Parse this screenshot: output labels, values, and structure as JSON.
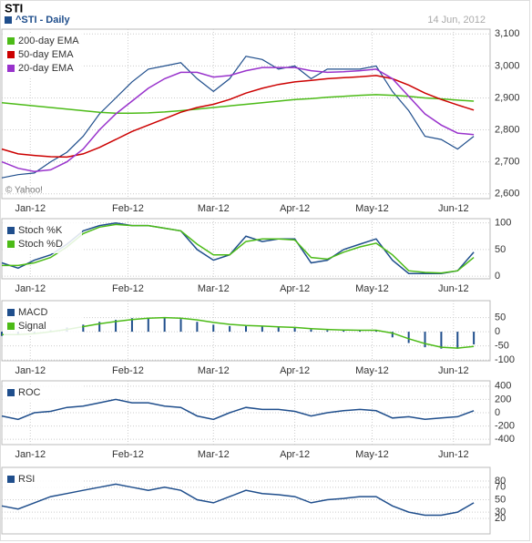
{
  "chart_data": [
    {
      "type": "line",
      "title": "STI",
      "subtitle": "^STI - Daily",
      "date": "14 Jun, 2012",
      "annotation": "© Yahoo!",
      "x": [
        0,
        4,
        8,
        12,
        16,
        20,
        24,
        28,
        32,
        36,
        40,
        44,
        48,
        52,
        56,
        60,
        64,
        68,
        72,
        76,
        80,
        84,
        88,
        92,
        96,
        100,
        104,
        108,
        112,
        116
      ],
      "xlim": [
        0,
        120
      ],
      "xticks": [
        {
          "value": 7,
          "label": "Jan-12"
        },
        {
          "value": 31,
          "label": "Feb-12"
        },
        {
          "value": 52,
          "label": "Mar-12"
        },
        {
          "value": 72,
          "label": "Apr-12"
        },
        {
          "value": 91,
          "label": "May-12"
        },
        {
          "value": 111,
          "label": "Jun-12"
        }
      ],
      "ylim": [
        2585,
        3115
      ],
      "yticks": [
        {
          "value": 2600,
          "label": "2,600"
        },
        {
          "value": 2700,
          "label": "2,700"
        },
        {
          "value": 2800,
          "label": "2,800"
        },
        {
          "value": 2900,
          "label": "2,900"
        },
        {
          "value": 3000,
          "label": "3,000"
        },
        {
          "value": 3100,
          "label": "3,100"
        }
      ],
      "grid": true,
      "series": [
        {
          "color": "#1f4e8c",
          "values": [
            2650,
            2660,
            2665,
            2700,
            2730,
            2780,
            2850,
            2900,
            2950,
            2990,
            3000,
            3010,
            2960,
            2920,
            2960,
            3030,
            3020,
            2990,
            3000,
            2960,
            2990,
            2990,
            2990,
            3000,
            2920,
            2860,
            2780,
            2770,
            2740,
            2780
          ]
        },
        {
          "name": "200-day EMA",
          "color": "#4cbb17",
          "values": [
            2885,
            2880,
            2875,
            2870,
            2865,
            2860,
            2855,
            2852,
            2852,
            2853,
            2856,
            2860,
            2865,
            2870,
            2875,
            2880,
            2885,
            2890,
            2895,
            2898,
            2902,
            2905,
            2908,
            2910,
            2908,
            2905,
            2900,
            2897,
            2893,
            2890
          ]
        },
        {
          "name": "50-day EMA",
          "color": "#cc0000",
          "values": [
            2740,
            2725,
            2720,
            2716,
            2715,
            2725,
            2745,
            2770,
            2795,
            2815,
            2835,
            2855,
            2870,
            2880,
            2895,
            2915,
            2930,
            2942,
            2950,
            2955,
            2960,
            2963,
            2966,
            2970,
            2960,
            2940,
            2915,
            2895,
            2878,
            2862
          ]
        },
        {
          "name": "20-day EMA",
          "color": "#9933cc",
          "values": [
            2700,
            2680,
            2670,
            2675,
            2700,
            2740,
            2800,
            2850,
            2890,
            2930,
            2960,
            2980,
            2980,
            2965,
            2970,
            2985,
            2995,
            2995,
            2995,
            2985,
            2980,
            2982,
            2985,
            2990,
            2960,
            2905,
            2850,
            2815,
            2790,
            2785
          ]
        }
      ]
    },
    {
      "type": "line",
      "x": [
        0,
        4,
        8,
        12,
        16,
        20,
        24,
        28,
        32,
        36,
        40,
        44,
        48,
        52,
        56,
        60,
        64,
        68,
        72,
        76,
        80,
        84,
        88,
        92,
        96,
        100,
        104,
        108,
        112,
        116
      ],
      "xlim": [
        0,
        120
      ],
      "xticks": [
        {
          "value": 7,
          "label": "Jan-12"
        },
        {
          "value": 31,
          "label": "Feb-12"
        },
        {
          "value": 52,
          "label": "Mar-12"
        },
        {
          "value": 72,
          "label": "Apr-12"
        },
        {
          "value": 91,
          "label": "May-12"
        },
        {
          "value": 111,
          "label": "Jun-12"
        }
      ],
      "ylim": [
        -5,
        108
      ],
      "yticks": [
        0,
        50,
        100
      ],
      "grid": true,
      "series": [
        {
          "name": "Stoch %K",
          "color": "#1f4e8c",
          "values": [
            25,
            15,
            30,
            40,
            60,
            85,
            95,
            100,
            95,
            95,
            90,
            85,
            50,
            30,
            40,
            75,
            65,
            70,
            70,
            25,
            30,
            50,
            60,
            70,
            30,
            5,
            5,
            5,
            10,
            45
          ]
        },
        {
          "name": "Stoch %D",
          "color": "#4cbb17",
          "values": [
            20,
            20,
            25,
            35,
            55,
            80,
            92,
            97,
            95,
            95,
            90,
            85,
            60,
            40,
            40,
            65,
            70,
            70,
            68,
            35,
            32,
            45,
            55,
            62,
            40,
            10,
            7,
            6,
            10,
            35
          ]
        }
      ]
    },
    {
      "type": "line",
      "x": [
        0,
        4,
        8,
        12,
        16,
        20,
        24,
        28,
        32,
        36,
        40,
        44,
        48,
        52,
        56,
        60,
        64,
        68,
        72,
        76,
        80,
        84,
        88,
        92,
        96,
        100,
        104,
        108,
        112,
        116
      ],
      "xlim": [
        0,
        120
      ],
      "xticks": [
        {
          "value": 7,
          "label": "Jan-12"
        },
        {
          "value": 31,
          "label": "Feb-12"
        },
        {
          "value": 52,
          "label": "Mar-12"
        },
        {
          "value": 72,
          "label": "Apr-12"
        },
        {
          "value": 91,
          "label": "May-12"
        },
        {
          "value": 111,
          "label": "Jun-12"
        }
      ],
      "ylim": [
        -103,
        110
      ],
      "yticks": [
        -100,
        -50,
        0,
        50
      ],
      "grid": true,
      "series": [
        {
          "name": "MACD",
          "color": "#1f4e8c",
          "style": "bar",
          "values": [
            -15,
            -10,
            -5,
            5,
            15,
            25,
            35,
            42,
            48,
            50,
            50,
            45,
            35,
            25,
            20,
            20,
            18,
            15,
            15,
            8,
            5,
            5,
            5,
            5,
            -20,
            -40,
            -55,
            -60,
            -60,
            -45
          ]
        },
        {
          "name": "Signal",
          "color": "#4cbb17",
          "values": [
            -10,
            -10,
            -7,
            0,
            8,
            18,
            28,
            36,
            43,
            48,
            50,
            48,
            42,
            33,
            26,
            22,
            20,
            17,
            15,
            11,
            8,
            6,
            5,
            5,
            -5,
            -25,
            -42,
            -55,
            -58,
            -52
          ]
        }
      ]
    },
    {
      "type": "line",
      "x": [
        0,
        4,
        8,
        12,
        16,
        20,
        24,
        28,
        32,
        36,
        40,
        44,
        48,
        52,
        56,
        60,
        64,
        68,
        72,
        76,
        80,
        84,
        88,
        92,
        96,
        100,
        104,
        108,
        112,
        116
      ],
      "xlim": [
        0,
        120
      ],
      "xticks": [
        {
          "value": 7,
          "label": "Jan-12"
        },
        {
          "value": 31,
          "label": "Feb-12"
        },
        {
          "value": 52,
          "label": "Mar-12"
        },
        {
          "value": 72,
          "label": "Apr-12"
        },
        {
          "value": 91,
          "label": "May-12"
        },
        {
          "value": 111,
          "label": "Jun-12"
        }
      ],
      "ylim": [
        -480,
        480
      ],
      "yticks": [
        -400,
        -200,
        0,
        200,
        400
      ],
      "grid": true,
      "series": [
        {
          "name": "ROC",
          "color": "#1f4e8c",
          "values": [
            -50,
            -100,
            0,
            20,
            80,
            100,
            150,
            200,
            150,
            150,
            100,
            80,
            -50,
            -100,
            0,
            80,
            50,
            50,
            20,
            -50,
            0,
            30,
            50,
            30,
            -80,
            -60,
            -100,
            -80,
            -60,
            30
          ]
        }
      ]
    },
    {
      "type": "line",
      "x": [
        0,
        4,
        8,
        12,
        16,
        20,
        24,
        28,
        32,
        36,
        40,
        44,
        48,
        52,
        56,
        60,
        64,
        68,
        72,
        76,
        80,
        84,
        88,
        92,
        96,
        100,
        104,
        108,
        112,
        116
      ],
      "xlim": [
        0,
        120
      ],
      "ylim": [
        -5,
        102
      ],
      "yticks": [
        20,
        30,
        50,
        70,
        80
      ],
      "grid": true,
      "series": [
        {
          "name": "RSI",
          "color": "#1f4e8c",
          "values": [
            40,
            35,
            45,
            55,
            60,
            65,
            70,
            75,
            70,
            65,
            70,
            65,
            50,
            45,
            55,
            65,
            60,
            58,
            55,
            45,
            50,
            52,
            55,
            55,
            40,
            30,
            25,
            25,
            30,
            45
          ]
        }
      ]
    }
  ]
}
